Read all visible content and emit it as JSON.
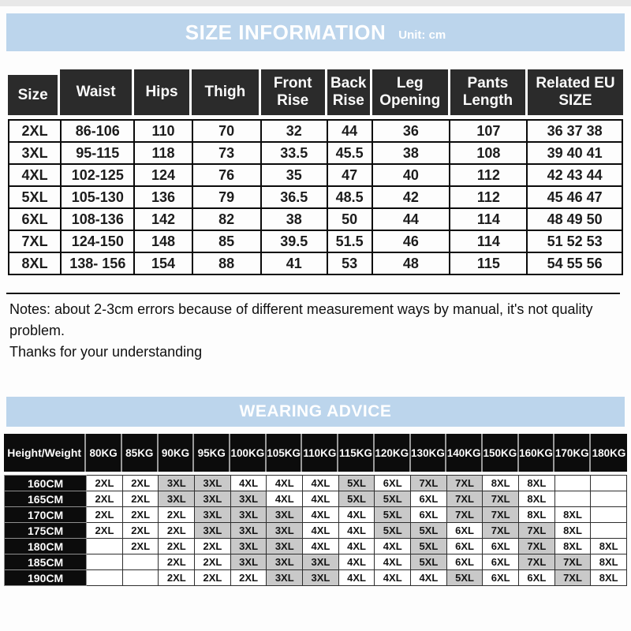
{
  "colors": {
    "banner_blue": "#bcd5ec",
    "size_header_dark": "#2b2b2b",
    "advice_header_black": "#0c0c0c",
    "shaded_cell_gray": "#c9c9c9"
  },
  "size_info": {
    "title": "SIZE INFORMATION",
    "unit": "Unit: cm",
    "columns": [
      "Size",
      "Waist",
      "Hips",
      "Thigh",
      "Front Rise",
      "Back Rise",
      "Leg Opening",
      "Pants Length",
      "Related EU SIZE"
    ],
    "rows": [
      [
        "2XL",
        "86-106",
        "110",
        "70",
        "32",
        "44",
        "36",
        "107",
        "36 37 38"
      ],
      [
        "3XL",
        "95-115",
        "118",
        "73",
        "33.5",
        "45.5",
        "38",
        "108",
        "39 40 41"
      ],
      [
        "4XL",
        "102-125",
        "124",
        "76",
        "35",
        "47",
        "40",
        "112",
        "42 43 44"
      ],
      [
        "5XL",
        "105-130",
        "136",
        "79",
        "36.5",
        "48.5",
        "42",
        "112",
        "45 46 47"
      ],
      [
        "6XL",
        "108-136",
        "142",
        "82",
        "38",
        "50",
        "44",
        "114",
        "48 49 50"
      ],
      [
        "7XL",
        "124-150",
        "148",
        "85",
        "39.5",
        "51.5",
        "46",
        "114",
        "51 52 53"
      ],
      [
        "8XL",
        "138- 156",
        "154",
        "88",
        "41",
        "53",
        "48",
        "115",
        "54 55 56"
      ]
    ]
  },
  "notes": {
    "line1": "Notes: about 2-3cm errors because of different measurement ways by manual, it's not quality problem.",
    "line2": "Thanks for your understanding"
  },
  "wearing_advice": {
    "title": "WEARING ADVICE",
    "corner_label": "Height/Weight",
    "weight_headers": [
      "80KG",
      "85KG",
      "90KG",
      "95KG",
      "100KG",
      "105KG",
      "110KG",
      "115KG",
      "120KG",
      "130KG",
      "140KG",
      "150KG",
      "160KG",
      "170KG",
      "180KG"
    ],
    "shaded_sizes": [
      "3XL",
      "5XL",
      "7XL"
    ],
    "rows": [
      {
        "height": "160CM",
        "sizes": [
          "2XL",
          "2XL",
          "3XL",
          "3XL",
          "4XL",
          "4XL",
          "4XL",
          "5XL",
          "6XL",
          "7XL",
          "7XL",
          "8XL",
          "8XL",
          "",
          ""
        ]
      },
      {
        "height": "165CM",
        "sizes": [
          "2XL",
          "2XL",
          "3XL",
          "3XL",
          "3XL",
          "4XL",
          "4XL",
          "5XL",
          "5XL",
          "6XL",
          "7XL",
          "7XL",
          "8XL",
          "",
          ""
        ]
      },
      {
        "height": "170CM",
        "sizes": [
          "2XL",
          "2XL",
          "2XL",
          "3XL",
          "3XL",
          "3XL",
          "4XL",
          "4XL",
          "5XL",
          "6XL",
          "7XL",
          "7XL",
          "8XL",
          "8XL",
          ""
        ]
      },
      {
        "height": "175CM",
        "sizes": [
          "2XL",
          "2XL",
          "2XL",
          "3XL",
          "3XL",
          "3XL",
          "4XL",
          "4XL",
          "5XL",
          "5XL",
          "6XL",
          "7XL",
          "7XL",
          "8XL",
          ""
        ]
      },
      {
        "height": "180CM",
        "sizes": [
          "",
          "2XL",
          "2XL",
          "2XL",
          "3XL",
          "3XL",
          "4XL",
          "4XL",
          "4XL",
          "5XL",
          "6XL",
          "6XL",
          "7XL",
          "8XL",
          "8XL"
        ]
      },
      {
        "height": "185CM",
        "sizes": [
          "",
          "",
          "2XL",
          "2XL",
          "3XL",
          "3XL",
          "3XL",
          "4XL",
          "4XL",
          "5XL",
          "6XL",
          "6XL",
          "7XL",
          "7XL",
          "8XL"
        ]
      },
      {
        "height": "190CM",
        "sizes": [
          "",
          "",
          "2XL",
          "2XL",
          "2XL",
          "3XL",
          "3XL",
          "4XL",
          "4XL",
          "4XL",
          "5XL",
          "6XL",
          "6XL",
          "7XL",
          "8XL"
        ]
      }
    ]
  }
}
